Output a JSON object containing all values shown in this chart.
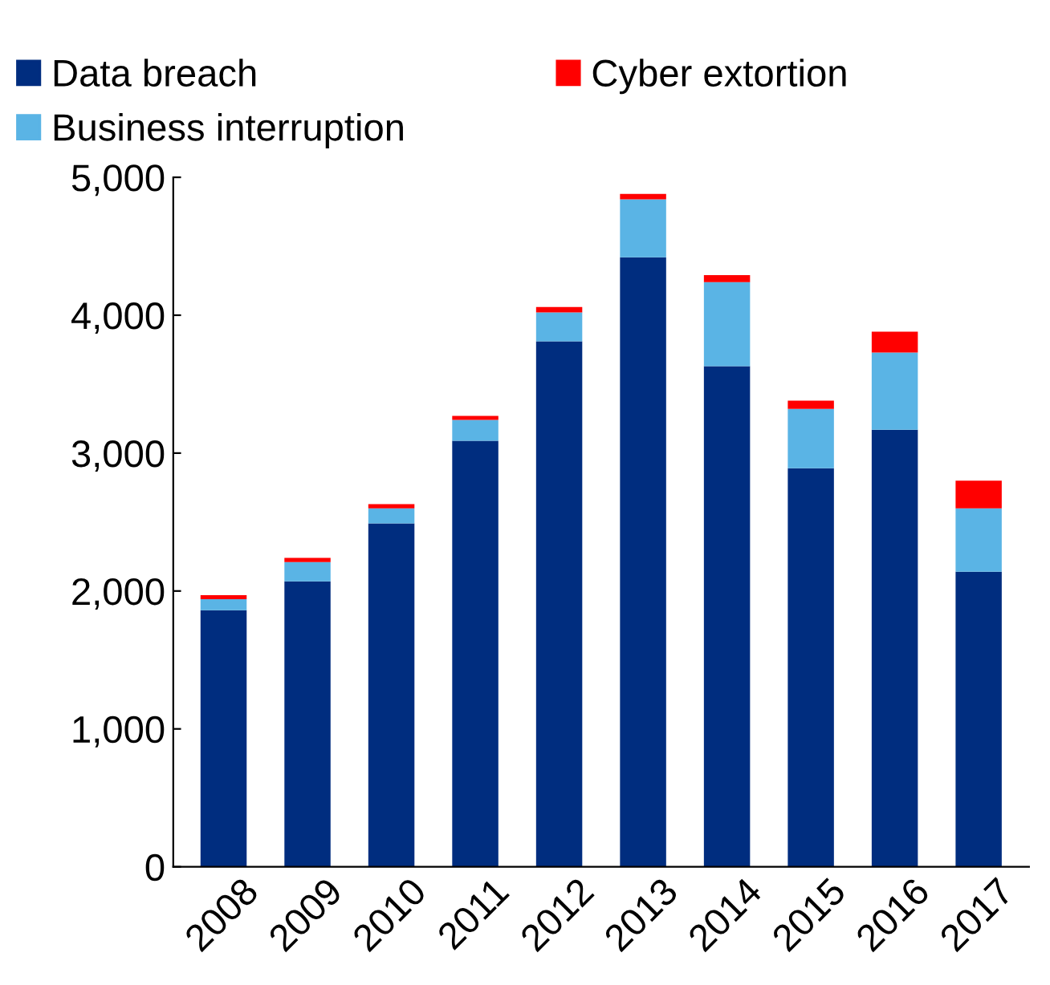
{
  "chart_data": {
    "type": "bar",
    "stacked": true,
    "categories": [
      "2008",
      "2009",
      "2010",
      "2011",
      "2012",
      "2013",
      "2014",
      "2015",
      "2016",
      "2017"
    ],
    "series": [
      {
        "name": "Data breach",
        "color": "#002d7f",
        "values": [
          1860,
          2070,
          2490,
          3090,
          3810,
          4420,
          3630,
          2890,
          3170,
          2140
        ]
      },
      {
        "name": "Business interruption",
        "color": "#5ab4e5",
        "values": [
          80,
          140,
          110,
          150,
          210,
          420,
          610,
          430,
          560,
          460
        ]
      },
      {
        "name": "Cyber extortion",
        "color": "#ff0000",
        "values": [
          30,
          30,
          30,
          30,
          40,
          40,
          50,
          60,
          150,
          200
        ]
      }
    ],
    "ylim": [
      0,
      5000
    ],
    "yticks": [
      {
        "value": 0,
        "label": "0"
      },
      {
        "value": 1000,
        "label": "1,000"
      },
      {
        "value": 2000,
        "label": "2,000"
      },
      {
        "value": 3000,
        "label": "3,000"
      },
      {
        "value": 4000,
        "label": "4,000"
      },
      {
        "value": 5000,
        "label": "5,000"
      }
    ],
    "legend": "top",
    "grid": false
  }
}
